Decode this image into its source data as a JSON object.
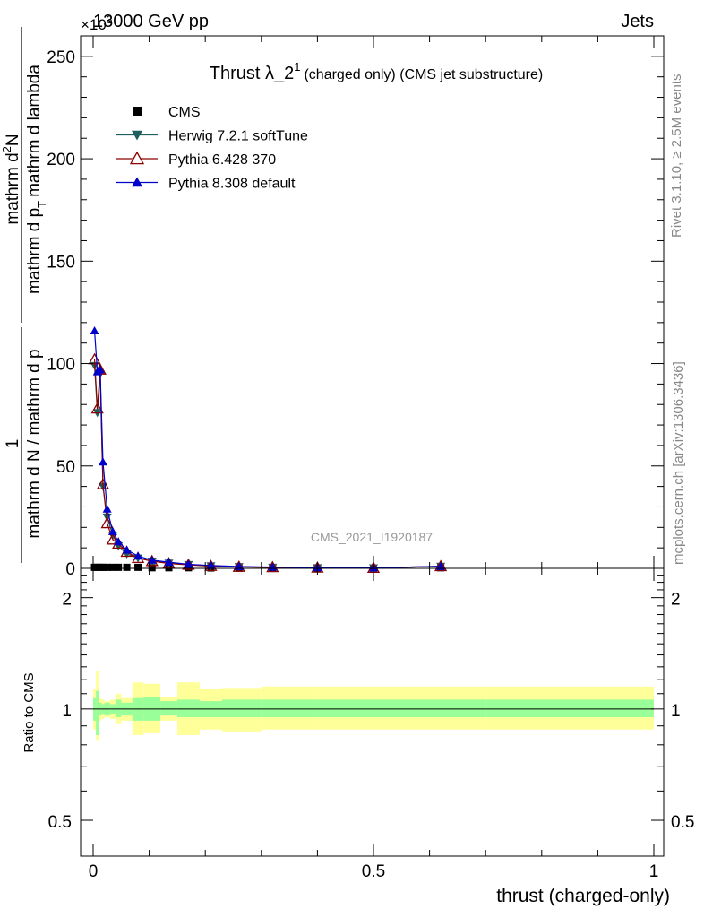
{
  "header": {
    "left": "13000 GeV pp",
    "right": "Jets",
    "exponent": "×10",
    "exponent_power": "3"
  },
  "side_labels": {
    "rivet": "Rivet 3.1.10, ≥ 2.5M events",
    "mcplots": "mcplots.cern.ch [arXiv:1306.3436]"
  },
  "watermark": "CMS_2021_I1920187",
  "chart_data": [
    {
      "type": "line",
      "title_main": "Thrust λ_2",
      "title_sup": "1",
      "title_rest": "(charged only) (CMS jet substructure)",
      "ylabel": {
        "num_1": "1",
        "den_1": "mathrm d N / mathrm d p",
        "num_2": "mathrm d",
        "num_2_sup": "2",
        "num_2_end": "N",
        "den_2": "mathrm d p",
        "den_2_sub": "T",
        "den_2_end": "mathrm d lambda"
      },
      "xlim": [
        0,
        1
      ],
      "ylim": [
        0,
        260
      ],
      "y_ticks": [
        0,
        50,
        100,
        150,
        200,
        250
      ],
      "legend": [
        {
          "name": "CMS",
          "color": "#000000",
          "marker": "square"
        },
        {
          "name": "Herwig 7.2.1 softTune",
          "color": "#1f5e5e",
          "marker": "triangle-down"
        },
        {
          "name": "Pythia 6.428 370",
          "color": "#8b0000",
          "marker": "triangle-open"
        },
        {
          "name": "Pythia 8.308 default",
          "color": "#0000cc",
          "marker": "triangle-up"
        }
      ],
      "x": [
        0.0025,
        0.0075,
        0.0125,
        0.0175,
        0.025,
        0.035,
        0.045,
        0.06,
        0.08,
        0.105,
        0.135,
        0.17,
        0.21,
        0.26,
        0.32,
        0.4,
        0.5,
        0.62
      ],
      "series": [
        {
          "name": "CMS",
          "values": [
            0.5,
            0.5,
            0.5,
            0.5,
            0.5,
            0.5,
            0.5,
            0.5,
            0.5,
            0.3,
            0.3,
            0.3,
            0.2,
            0.1,
            0.1,
            0.1,
            0.1,
            0.3
          ]
        },
        {
          "name": "Herwig 7.2.1 softTune",
          "values": [
            99,
            76,
            95,
            40,
            25,
            16,
            11,
            7,
            5,
            3.5,
            2.5,
            1.8,
            1.2,
            0.8,
            0.5,
            0.3,
            0.2,
            1.0
          ]
        },
        {
          "name": "Pythia 6.428 370",
          "values": [
            102,
            78,
            97,
            41,
            22,
            14,
            12,
            8,
            5,
            3.5,
            2.4,
            1.7,
            1.1,
            0.7,
            0.5,
            0.3,
            0.2,
            1.0
          ]
        },
        {
          "name": "Pythia 8.308 default",
          "values": [
            116,
            96,
            97,
            52,
            29,
            18,
            13,
            9,
            6,
            4,
            3,
            2,
            1.4,
            0.9,
            0.6,
            0.4,
            0.2,
            1.0
          ]
        }
      ]
    },
    {
      "type": "area",
      "ylabel": "Ratio to CMS",
      "xlabel": "thrust (charged-only)",
      "xlim": [
        0,
        1
      ],
      "ylim": [
        0.4,
        2.4
      ],
      "y_scale": "log",
      "y_ticks": [
        0.5,
        1,
        2
      ],
      "y_tick_labels": [
        "0.5",
        "1",
        "2"
      ],
      "x_ticks": [
        0,
        0.5,
        1
      ],
      "x_tick_labels": [
        "0",
        "0.5",
        "1"
      ],
      "reference_line": 1,
      "bands": {
        "edges": [
          0,
          0.005,
          0.01,
          0.015,
          0.02,
          0.03,
          0.04,
          0.05,
          0.07,
          0.09,
          0.12,
          0.15,
          0.19,
          0.23,
          0.3,
          0.4,
          0.5,
          0.7,
          1.0
        ],
        "inner_color": "#99ff99",
        "outer_color": "#ffff99",
        "inner": [
          [
            0.93,
            1.07
          ],
          [
            0.85,
            1.12
          ],
          [
            0.96,
            1.04
          ],
          [
            0.97,
            1.03
          ],
          [
            0.96,
            1.04
          ],
          [
            0.97,
            1.03
          ],
          [
            0.95,
            1.06
          ],
          [
            0.96,
            1.04
          ],
          [
            0.93,
            1.07
          ],
          [
            0.93,
            1.08
          ],
          [
            0.96,
            1.05
          ],
          [
            0.95,
            1.06
          ],
          [
            0.95,
            1.05
          ],
          [
            0.95,
            1.06
          ],
          [
            0.95,
            1.06
          ],
          [
            0.95,
            1.06
          ],
          [
            0.95,
            1.06
          ],
          [
            0.95,
            1.06
          ]
        ],
        "outer": [
          [
            0.88,
            1.13
          ],
          [
            0.82,
            1.27
          ],
          [
            0.93,
            1.07
          ],
          [
            0.94,
            1.06
          ],
          [
            0.95,
            1.05
          ],
          [
            0.94,
            1.06
          ],
          [
            0.91,
            1.1
          ],
          [
            0.93,
            1.07
          ],
          [
            0.85,
            1.18
          ],
          [
            0.86,
            1.17
          ],
          [
            0.93,
            1.08
          ],
          [
            0.85,
            1.18
          ],
          [
            0.88,
            1.13
          ],
          [
            0.87,
            1.14
          ],
          [
            0.88,
            1.15
          ],
          [
            0.88,
            1.15
          ],
          [
            0.88,
            1.15
          ],
          [
            0.88,
            1.15
          ]
        ]
      }
    }
  ]
}
